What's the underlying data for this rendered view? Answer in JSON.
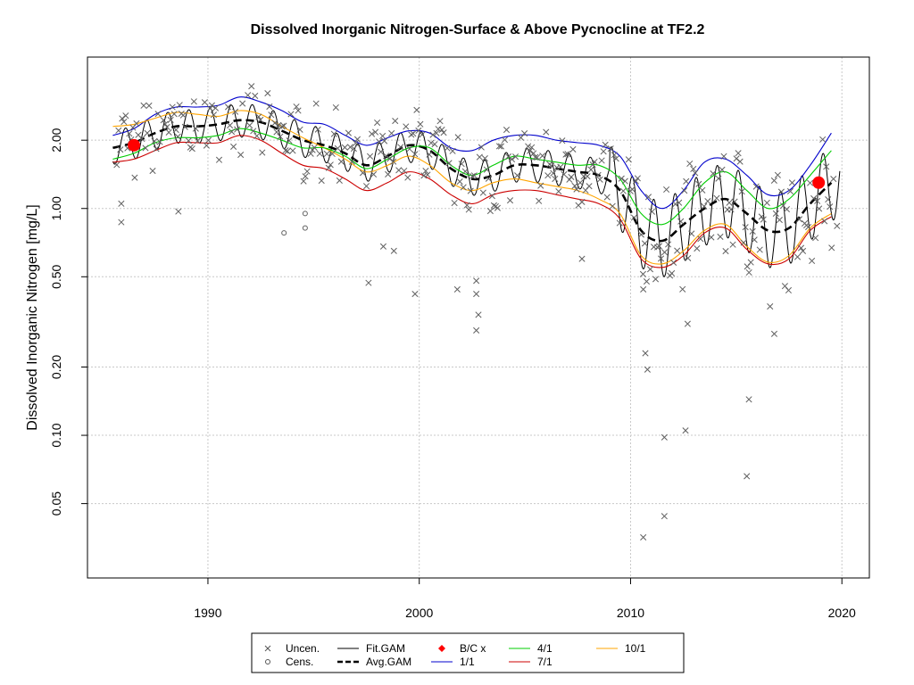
{
  "chart_data": {
    "type": "line",
    "title": "Dissolved Inorganic Nitrogen-Surface & Above Pycnocline at TF2.2",
    "ylabel": "Dissolved Inorganic Nitrogen [mg/L]",
    "xlabel": "",
    "y_scale": "log",
    "xlim": [
      1984.3,
      2021.3
    ],
    "ylim": [
      0.0235,
      4.65
    ],
    "x_ticks": [
      1990,
      2000,
      2010,
      2020
    ],
    "x_tick_labels": [
      "1990",
      "2000",
      "2010",
      "2020"
    ],
    "y_ticks": [
      0.05,
      0.1,
      0.2,
      0.5,
      1.0,
      2.0
    ],
    "y_tick_labels": [
      "0.05",
      "0.10",
      "0.20",
      "0.50",
      "1.00",
      "2.00"
    ],
    "grid": true,
    "legend_position": "bottom",
    "legend": [
      {
        "label": "Uncen.",
        "kind": "x-marker",
        "color": "#555555"
      },
      {
        "label": "Fit.GAM",
        "kind": "line",
        "color": "#000000"
      },
      {
        "label": "B/C x",
        "kind": "diamond",
        "color": "#ff0000"
      },
      {
        "label": "4/1",
        "kind": "line",
        "color": "#00cc00"
      },
      {
        "label": "10/1",
        "kind": "line",
        "color": "#ffa500"
      },
      {
        "label": "Cens.",
        "kind": "circle",
        "color": "#555555"
      },
      {
        "label": "Avg.GAM",
        "kind": "dashed-line",
        "color": "#000000"
      },
      {
        "label": "1/1",
        "kind": "line",
        "color": "#0000cc"
      },
      {
        "label": "7/1",
        "kind": "line",
        "color": "#cc0000"
      }
    ],
    "series": [
      {
        "name": "Avg.GAM",
        "color": "#000000",
        "dashed": true,
        "x": [
          1985.5,
          1986.5,
          1987.5,
          1988.5,
          1989.5,
          1990.5,
          1991.5,
          1992.5,
          1993.5,
          1994.5,
          1995.5,
          1996.5,
          1997.5,
          1998.5,
          1999.5,
          2000.5,
          2001.5,
          2002.5,
          2003.5,
          2004.5,
          2005.5,
          2006.5,
          2007.5,
          2008.5,
          2009.5,
          2010.5,
          2011.5,
          2012.5,
          2013.5,
          2014.5,
          2015.5,
          2016.5,
          2017.5,
          2018.5,
          2019.5
        ],
        "y": [
          1.85,
          1.95,
          2.15,
          2.3,
          2.3,
          2.35,
          2.45,
          2.4,
          2.2,
          2.0,
          1.9,
          1.75,
          1.55,
          1.7,
          1.9,
          1.8,
          1.5,
          1.35,
          1.4,
          1.55,
          1.55,
          1.5,
          1.45,
          1.4,
          1.2,
          0.8,
          0.72,
          0.85,
          1.0,
          1.1,
          0.95,
          0.8,
          0.82,
          1.05,
          1.3
        ]
      },
      {
        "name": "1/1",
        "color": "#0000cc",
        "dashed": false,
        "x": [
          1985.5,
          1986.5,
          1987.5,
          1988.5,
          1989.5,
          1990.5,
          1991.5,
          1992.5,
          1993.5,
          1994.5,
          1995.5,
          1996.5,
          1997.5,
          1998.5,
          1999.5,
          2000.5,
          2001.5,
          2002.5,
          2003.5,
          2004.5,
          2005.5,
          2006.5,
          2007.5,
          2008.5,
          2009.5,
          2010.5,
          2011.5,
          2012.5,
          2013.5,
          2014.5,
          2015.5,
          2016.5,
          2017.5,
          2018.5,
          2019.5
        ],
        "y": [
          2.1,
          2.25,
          2.6,
          2.8,
          2.8,
          2.85,
          3.1,
          2.95,
          2.7,
          2.4,
          2.35,
          2.1,
          1.9,
          2.05,
          2.2,
          2.15,
          1.85,
          1.8,
          2.0,
          2.1,
          2.1,
          2.0,
          1.95,
          1.9,
          1.7,
          1.2,
          1.0,
          1.2,
          1.6,
          1.65,
          1.4,
          1.15,
          1.2,
          1.55,
          2.15
        ]
      },
      {
        "name": "10/1",
        "color": "#ffa500",
        "dashed": false,
        "x": [
          1985.5,
          1986.5,
          1987.5,
          1988.5,
          1989.5,
          1990.5,
          1991.5,
          1992.5,
          1993.5,
          1994.5,
          1995.5,
          1996.5,
          1997.5,
          1998.5,
          1999.5,
          2000.5,
          2001.5,
          2002.5,
          2003.5,
          2004.5,
          2005.5,
          2006.5,
          2007.5,
          2008.5,
          2009.5,
          2010.5,
          2011.5,
          2012.5,
          2013.5,
          2014.5,
          2015.5,
          2016.5,
          2017.5,
          2018.5,
          2019.5
        ],
        "y": [
          2.3,
          2.35,
          2.5,
          2.65,
          2.6,
          2.55,
          2.7,
          2.6,
          2.3,
          2.05,
          1.85,
          1.65,
          1.45,
          1.55,
          1.7,
          1.55,
          1.3,
          1.2,
          1.3,
          1.35,
          1.3,
          1.25,
          1.2,
          1.1,
          0.95,
          0.62,
          0.57,
          0.65,
          0.8,
          0.85,
          0.68,
          0.58,
          0.62,
          0.82,
          0.95
        ]
      },
      {
        "name": "4/1",
        "color": "#00cc00",
        "dashed": false,
        "x": [
          1985.5,
          1986.5,
          1987.5,
          1988.5,
          1989.5,
          1990.5,
          1991.5,
          1992.5,
          1993.5,
          1994.5,
          1995.5,
          1996.5,
          1997.5,
          1998.5,
          1999.5,
          2000.5,
          2001.5,
          2002.5,
          2003.5,
          2004.5,
          2005.5,
          2006.5,
          2007.5,
          2008.5,
          2009.5,
          2010.5,
          2011.5,
          2012.5,
          2013.5,
          2014.5,
          2015.5,
          2016.5,
          2017.5,
          2018.5,
          2019.5
        ],
        "y": [
          1.65,
          1.75,
          1.95,
          2.05,
          2.05,
          2.1,
          2.25,
          2.15,
          2.0,
          1.85,
          1.85,
          1.7,
          1.5,
          1.65,
          1.85,
          1.85,
          1.55,
          1.4,
          1.55,
          1.7,
          1.65,
          1.6,
          1.55,
          1.55,
          1.35,
          0.95,
          0.85,
          1.0,
          1.3,
          1.45,
          1.2,
          1.0,
          1.1,
          1.4,
          1.8
        ]
      },
      {
        "name": "7/1",
        "color": "#cc0000",
        "dashed": false,
        "x": [
          1985.5,
          1986.5,
          1987.5,
          1988.5,
          1989.5,
          1990.5,
          1991.5,
          1992.5,
          1993.5,
          1994.5,
          1995.5,
          1996.5,
          1997.5,
          1998.5,
          1999.5,
          2000.5,
          2001.5,
          2002.5,
          2003.5,
          2004.5,
          2005.5,
          2006.5,
          2007.5,
          2008.5,
          2009.5,
          2010.5,
          2011.5,
          2012.5,
          2013.5,
          2014.5,
          2015.5,
          2016.5,
          2017.5,
          2018.5,
          2019.5
        ],
        "y": [
          1.6,
          1.65,
          1.8,
          1.95,
          1.95,
          1.95,
          2.1,
          2.0,
          1.75,
          1.55,
          1.5,
          1.35,
          1.2,
          1.3,
          1.45,
          1.35,
          1.15,
          1.05,
          1.15,
          1.2,
          1.2,
          1.15,
          1.1,
          1.05,
          0.9,
          0.6,
          0.55,
          0.62,
          0.78,
          0.82,
          0.66,
          0.57,
          0.6,
          0.8,
          0.92
        ]
      }
    ],
    "bc_points": [
      {
        "x": 1986.5,
        "y": 1.9
      },
      {
        "x": 2018.9,
        "y": 1.3
      }
    ],
    "censored_points": [
      {
        "x": 1994.6,
        "y": 0.95
      },
      {
        "x": 1994.6,
        "y": 0.82
      },
      {
        "x": 1993.6,
        "y": 0.78
      }
    ],
    "uncensored_low_points": [
      {
        "x": 1985.9,
        "y": 1.05
      },
      {
        "x": 1985.9,
        "y": 0.87
      },
      {
        "x": 1988.6,
        "y": 0.97
      },
      {
        "x": 1997.6,
        "y": 0.47
      },
      {
        "x": 1998.3,
        "y": 0.68
      },
      {
        "x": 1998.8,
        "y": 0.65
      },
      {
        "x": 1999.8,
        "y": 0.42
      },
      {
        "x": 2001.8,
        "y": 0.44
      },
      {
        "x": 2002.7,
        "y": 0.48
      },
      {
        "x": 2002.7,
        "y": 0.42
      },
      {
        "x": 2002.8,
        "y": 0.34
      },
      {
        "x": 2002.7,
        "y": 0.29
      },
      {
        "x": 2010.6,
        "y": 0.0355
      },
      {
        "x": 2010.7,
        "y": 0.23
      },
      {
        "x": 2010.8,
        "y": 0.195
      },
      {
        "x": 2011.6,
        "y": 0.098
      },
      {
        "x": 2011.6,
        "y": 0.044
      },
      {
        "x": 2012.6,
        "y": 0.105
      },
      {
        "x": 2012.7,
        "y": 0.31
      },
      {
        "x": 2015.6,
        "y": 0.144
      },
      {
        "x": 2015.5,
        "y": 0.066
      },
      {
        "x": 2016.8,
        "y": 0.28
      },
      {
        "x": 2016.6,
        "y": 0.37
      },
      {
        "x": 2010.6,
        "y": 0.44
      },
      {
        "x": 2007.7,
        "y": 0.6
      }
    ]
  }
}
